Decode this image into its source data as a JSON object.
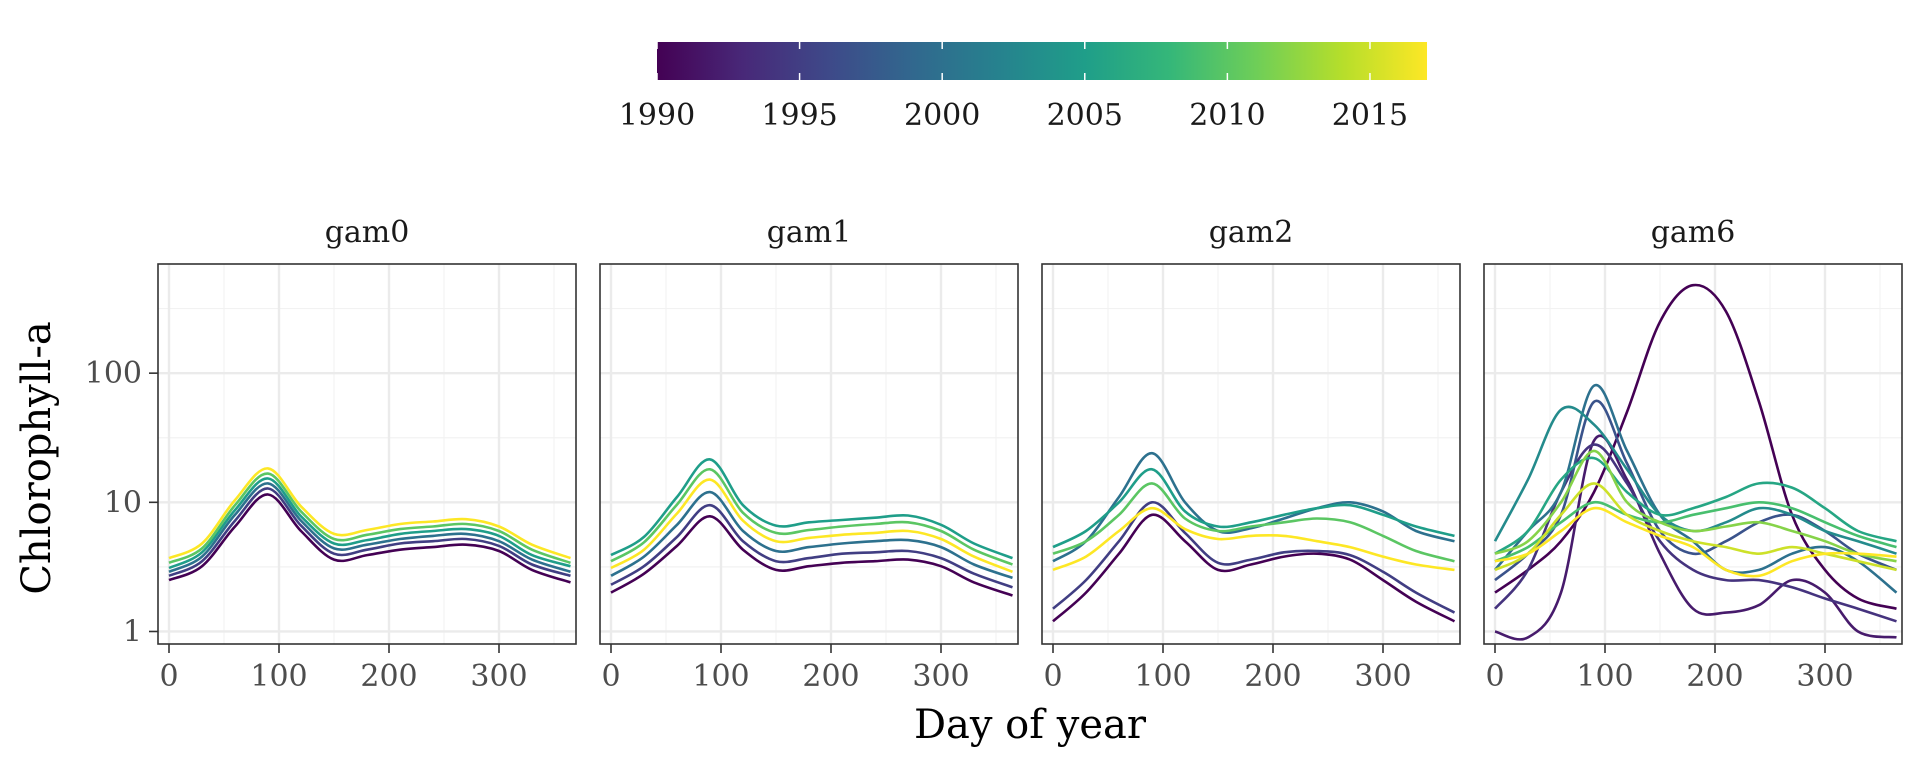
{
  "chart_data": {
    "type": "line",
    "xlabel": "Day of year",
    "ylabel": "Chlorophyll-a",
    "y_scale": "log10",
    "ylim": [
      0.8,
      700
    ],
    "xlim": [
      -10,
      370
    ],
    "x_ticks": [
      0,
      100,
      200,
      300
    ],
    "x_tick_labels": [
      "0",
      "100",
      "200",
      "300"
    ],
    "y_ticks": [
      1,
      10,
      100
    ],
    "y_tick_labels": [
      "1",
      "10",
      "100"
    ],
    "grid": true,
    "color_scale": {
      "name": "viridis",
      "colors": [
        "#440154",
        "#482878",
        "#3e4989",
        "#31688e",
        "#26828e",
        "#1f9e89",
        "#35b779",
        "#6ece58",
        "#b5de2b",
        "#fde725"
      ],
      "range": [
        1990,
        2017
      ],
      "breaks": [
        1990,
        1995,
        2000,
        2005,
        2010,
        2015
      ],
      "break_labels": [
        "1990",
        "1995",
        "2000",
        "2005",
        "2010",
        "2015"
      ],
      "position": "top"
    },
    "x": [
      0,
      30,
      60,
      90,
      120,
      150,
      180,
      210,
      240,
      270,
      300,
      330,
      365
    ],
    "panels": [
      {
        "label": "gam0",
        "series": [
          {
            "year": 1990,
            "values": [
              2.5,
              3.2,
              6.5,
              11.5,
              6.0,
              3.6,
              3.9,
              4.3,
              4.5,
              4.7,
              4.2,
              3.0,
              2.4
            ]
          },
          {
            "year": 1995,
            "values": [
              2.7,
              3.5,
              7.2,
              12.8,
              6.6,
              4.0,
              4.3,
              4.8,
              5.0,
              5.2,
              4.6,
              3.3,
              2.7
            ]
          },
          {
            "year": 2000,
            "values": [
              2.9,
              3.8,
              8.0,
              14.0,
              7.2,
              4.4,
              4.7,
              5.2,
              5.5,
              5.7,
              5.0,
              3.6,
              2.9
            ]
          },
          {
            "year": 2005,
            "values": [
              3.1,
              4.1,
              8.7,
              15.3,
              7.8,
              4.8,
              5.1,
              5.7,
              6.0,
              6.2,
              5.5,
              3.9,
              3.2
            ]
          },
          {
            "year": 2010,
            "values": [
              3.4,
              4.4,
              9.5,
              16.7,
              8.5,
              5.2,
              5.6,
              6.2,
              6.5,
              6.8,
              6.0,
              4.3,
              3.4
            ]
          },
          {
            "year": 2017,
            "values": [
              3.7,
              4.8,
              10.4,
              18.3,
              9.3,
              5.7,
              6.1,
              6.8,
              7.1,
              7.4,
              6.5,
              4.7,
              3.7
            ]
          }
        ]
      },
      {
        "label": "gam1",
        "series": [
          {
            "year": 1990,
            "values": [
              2.0,
              2.8,
              4.6,
              7.8,
              4.3,
              3.0,
              3.2,
              3.4,
              3.5,
              3.6,
              3.2,
              2.4,
              1.9
            ]
          },
          {
            "year": 1995,
            "values": [
              2.3,
              3.2,
              5.4,
              9.5,
              5.0,
              3.5,
              3.7,
              4.0,
              4.1,
              4.2,
              3.7,
              2.8,
              2.2
            ]
          },
          {
            "year": 2000,
            "values": [
              2.7,
              3.8,
              6.7,
              12.0,
              6.0,
              4.2,
              4.5,
              4.8,
              5.0,
              5.1,
              4.5,
              3.3,
              2.6
            ]
          },
          {
            "year": 2005,
            "values": [
              3.9,
              5.4,
              11.0,
              21.5,
              9.5,
              6.6,
              7.0,
              7.3,
              7.6,
              7.9,
              6.7,
              4.8,
              3.7
            ]
          },
          {
            "year": 2010,
            "values": [
              3.5,
              4.9,
              9.6,
              18.0,
              8.3,
              5.8,
              6.1,
              6.5,
              6.8,
              7.0,
              6.0,
              4.3,
              3.3
            ]
          },
          {
            "year": 2017,
            "values": [
              3.1,
              4.3,
              8.2,
              15.0,
              7.2,
              5.0,
              5.3,
              5.6,
              5.8,
              6.0,
              5.2,
              3.8,
              2.9
            ]
          }
        ]
      },
      {
        "label": "gam2",
        "series": [
          {
            "year": 1990,
            "values": [
              1.2,
              2.0,
              4.0,
              8.0,
              5.0,
              3.0,
              3.3,
              3.8,
              4.0,
              3.6,
              2.5,
              1.7,
              1.2
            ]
          },
          {
            "year": 1995,
            "values": [
              1.5,
              2.5,
              5.0,
              10.0,
              5.8,
              3.4,
              3.6,
              4.1,
              4.2,
              3.9,
              2.9,
              2.0,
              1.4
            ]
          },
          {
            "year": 2000,
            "values": [
              3.5,
              5.0,
              11.0,
              24.0,
              10.0,
              6.0,
              6.3,
              7.5,
              9.0,
              10.0,
              8.5,
              6.0,
              5.0
            ]
          },
          {
            "year": 2005,
            "values": [
              4.5,
              6.0,
              10.0,
              18.0,
              8.5,
              6.5,
              7.0,
              8.0,
              9.0,
              9.5,
              8.0,
              6.5,
              5.5
            ]
          },
          {
            "year": 2010,
            "values": [
              4.0,
              5.0,
              8.0,
              14.0,
              7.5,
              6.0,
              6.5,
              7.0,
              7.5,
              7.0,
              5.5,
              4.2,
              3.5
            ]
          },
          {
            "year": 2017,
            "values": [
              3.0,
              3.8,
              6.0,
              9.0,
              6.2,
              5.2,
              5.5,
              5.5,
              5.0,
              4.5,
              3.8,
              3.3,
              3.0
            ]
          }
        ]
      },
      {
        "label": "gam6",
        "series": [
          {
            "year": 1990,
            "values": [
              2.0,
              3.0,
              5.0,
              12.0,
              50.0,
              250.0,
              480.0,
              300.0,
              60.0,
              8.0,
              3.0,
              1.8,
              1.5
            ]
          },
          {
            "year": 1992,
            "values": [
              1.0,
              0.9,
              2.0,
              30.0,
              15.0,
              4.0,
              1.5,
              1.4,
              1.6,
              2.5,
              2.0,
              1.0,
              0.9
            ]
          },
          {
            "year": 1994,
            "values": [
              1.5,
              3.0,
              12.0,
              28.0,
              14.0,
              5.0,
              3.0,
              2.5,
              2.5,
              2.2,
              1.8,
              1.5,
              1.2
            ]
          },
          {
            "year": 1997,
            "values": [
              2.5,
              4.0,
              8.0,
              60.0,
              20.0,
              6.0,
              4.0,
              5.0,
              7.0,
              8.0,
              6.0,
              4.0,
              3.0
            ]
          },
          {
            "year": 2000,
            "values": [
              3.0,
              6.0,
              12.0,
              80.0,
              25.0,
              8.0,
              5.0,
              3.0,
              3.0,
              4.0,
              4.5,
              3.5,
              2.0
            ]
          },
          {
            "year": 2003,
            "values": [
              5.0,
              15.0,
              52.0,
              40.0,
              18.0,
              8.0,
              6.0,
              7.0,
              9.0,
              8.0,
              6.0,
              5.0,
              4.0
            ]
          },
          {
            "year": 2006,
            "values": [
              4.0,
              6.0,
              15.0,
              22.0,
              12.0,
              8.0,
              9.0,
              11.0,
              14.0,
              13.0,
              9.0,
              6.0,
              5.0
            ]
          },
          {
            "year": 2009,
            "values": [
              3.5,
              4.5,
              7.0,
              10.0,
              8.0,
              7.0,
              8.0,
              9.0,
              10.0,
              9.0,
              7.0,
              5.5,
              4.5
            ]
          },
          {
            "year": 2012,
            "values": [
              4.0,
              5.0,
              10.0,
              25.0,
              10.0,
              7.0,
              6.0,
              6.5,
              7.0,
              6.0,
              5.0,
              4.0,
              3.5
            ]
          },
          {
            "year": 2015,
            "values": [
              3.0,
              4.0,
              8.0,
              14.0,
              8.0,
              6.0,
              5.0,
              4.5,
              4.0,
              4.5,
              4.0,
              3.5,
              3.0
            ]
          },
          {
            "year": 2017,
            "values": [
              3.5,
              4.0,
              6.0,
              9.0,
              7.0,
              5.5,
              4.5,
              3.0,
              2.7,
              3.5,
              4.0,
              4.0,
              3.8
            ]
          }
        ]
      }
    ]
  }
}
